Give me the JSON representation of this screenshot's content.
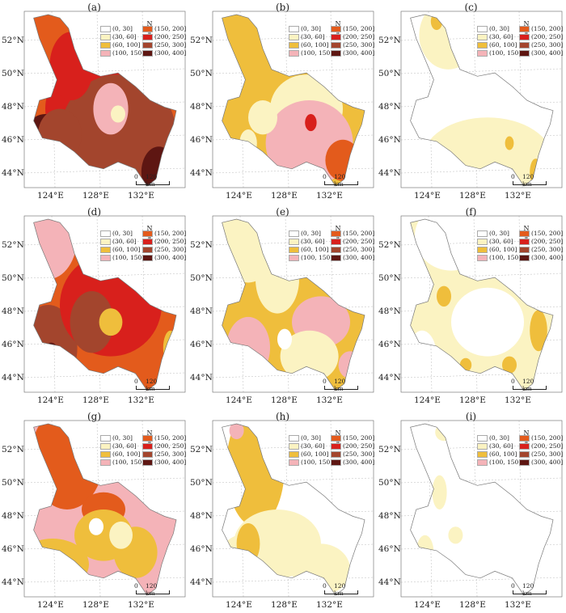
{
  "labels": {
    "lat": [
      "52°N",
      "50°N",
      "48°N",
      "46°N",
      "44°N"
    ],
    "lon": [
      "124°E",
      "128°E",
      "132°E"
    ],
    "north": "N",
    "scale_zero": "0",
    "scale_km": "120 km"
  },
  "legend": [
    {
      "label": "(0, 30]",
      "color": "#ffffff"
    },
    {
      "label": "(30, 60]",
      "color": "#fbf3c2"
    },
    {
      "label": "(60, 100]",
      "color": "#efbe3c"
    },
    {
      "label": "(100, 150]",
      "color": "#f4b3b8"
    },
    {
      "label": "(150, 200]",
      "color": "#e35b1c"
    },
    {
      "label": "(200, 250]",
      "color": "#d8201c"
    },
    {
      "label": "(250, 300]",
      "color": "#a3452d"
    },
    {
      "label": "(300, 400]",
      "color": "#5e1612"
    }
  ],
  "panels": [
    {
      "id": "(a)",
      "base": 4,
      "patches": [
        [
          5,
          0.45,
          0.55,
          0.35,
          0.3
        ],
        [
          6,
          0.6,
          0.7,
          0.4,
          0.35
        ],
        [
          7,
          0.1,
          0.8,
          0.18,
          0.22
        ],
        [
          3,
          0.55,
          0.55,
          0.12,
          0.15
        ],
        [
          1,
          0.6,
          0.58,
          0.05,
          0.05
        ],
        [
          7,
          0.88,
          0.92,
          0.12,
          0.15
        ],
        [
          5,
          0.28,
          0.3,
          0.15,
          0.2
        ],
        [
          6,
          0.2,
          0.7,
          0.15,
          0.15
        ],
        [
          1,
          0.4,
          0.2,
          0.04,
          0.05
        ]
      ]
    },
    {
      "id": "(b)",
      "base": 2,
      "patches": [
        [
          1,
          0.6,
          0.55,
          0.25,
          0.2
        ],
        [
          3,
          0.62,
          0.75,
          0.3,
          0.25
        ],
        [
          4,
          0.85,
          0.85,
          0.12,
          0.12
        ],
        [
          0,
          0.35,
          0.1,
          0.04,
          0.05
        ],
        [
          1,
          0.3,
          0.6,
          0.1,
          0.1
        ],
        [
          5,
          0.63,
          0.63,
          0.04,
          0.05
        ],
        [
          1,
          0.2,
          0.75,
          0.06,
          0.08
        ]
      ]
    },
    {
      "id": "(c)",
      "base": 0,
      "patches": [
        [
          1,
          0.55,
          0.85,
          0.45,
          0.25
        ],
        [
          1,
          0.28,
          0.12,
          0.2,
          0.2
        ],
        [
          2,
          0.2,
          0.04,
          0.04,
          0.05
        ],
        [
          2,
          0.88,
          0.92,
          0.04,
          0.08
        ],
        [
          2,
          0.7,
          0.75,
          0.03,
          0.04
        ]
      ]
    },
    {
      "id": "(d)",
      "base": 4,
      "patches": [
        [
          3,
          0.12,
          0.1,
          0.2,
          0.25
        ],
        [
          6,
          0.12,
          0.75,
          0.2,
          0.25
        ],
        [
          5,
          0.55,
          0.5,
          0.35,
          0.3
        ],
        [
          6,
          0.42,
          0.6,
          0.15,
          0.18
        ],
        [
          2,
          0.55,
          0.6,
          0.08,
          0.08
        ],
        [
          2,
          0.96,
          0.75,
          0.05,
          0.1
        ],
        [
          7,
          0.14,
          0.78,
          0.05,
          0.06
        ],
        [
          3,
          0.28,
          0.88,
          0.06,
          0.08
        ]
      ]
    },
    {
      "id": "(e)",
      "base": 2,
      "patches": [
        [
          1,
          0.2,
          0.12,
          0.2,
          0.25
        ],
        [
          1,
          0.4,
          0.35,
          0.15,
          0.2
        ],
        [
          3,
          0.2,
          0.75,
          0.15,
          0.18
        ],
        [
          3,
          0.7,
          0.6,
          0.2,
          0.15
        ],
        [
          1,
          0.62,
          0.8,
          0.2,
          0.15
        ],
        [
          0,
          0.45,
          0.7,
          0.05,
          0.06
        ],
        [
          3,
          0.9,
          0.85,
          0.08,
          0.08
        ]
      ]
    },
    {
      "id": "(f)",
      "base": 1,
      "patches": [
        [
          0,
          0.3,
          0.1,
          0.25,
          0.2
        ],
        [
          0,
          0.55,
          0.6,
          0.25,
          0.2
        ],
        [
          0,
          0.1,
          0.8,
          0.1,
          0.15
        ],
        [
          2,
          0.9,
          0.65,
          0.06,
          0.12
        ],
        [
          2,
          0.25,
          0.45,
          0.05,
          0.06
        ],
        [
          2,
          0.7,
          0.85,
          0.05,
          0.05
        ],
        [
          2,
          0.4,
          0.85,
          0.04,
          0.04
        ]
      ]
    },
    {
      "id": "(g)",
      "base": 3,
      "patches": [
        [
          4,
          0.25,
          0.2,
          0.25,
          0.3
        ],
        [
          4,
          0.5,
          0.5,
          0.15,
          0.1
        ],
        [
          2,
          0.5,
          0.65,
          0.2,
          0.15
        ],
        [
          2,
          0.15,
          0.82,
          0.25,
          0.15
        ],
        [
          2,
          0.72,
          0.75,
          0.15,
          0.15
        ],
        [
          0,
          0.45,
          0.6,
          0.05,
          0.05
        ],
        [
          1,
          0.62,
          0.65,
          0.08,
          0.08
        ],
        [
          5,
          0.3,
          0.88,
          0.03,
          0.04
        ]
      ]
    },
    {
      "id": "(h)",
      "base": 0,
      "patches": [
        [
          2,
          0.25,
          0.25,
          0.2,
          0.35
        ],
        [
          1,
          0.4,
          0.7,
          0.3,
          0.2
        ],
        [
          1,
          0.15,
          0.8,
          0.15,
          0.15
        ],
        [
          1,
          0.7,
          0.85,
          0.2,
          0.15
        ],
        [
          3,
          0.12,
          0.04,
          0.05,
          0.05
        ],
        [
          2,
          0.2,
          0.7,
          0.08,
          0.12
        ]
      ]
    },
    {
      "id": "(i)",
      "base": 0,
      "patches": [
        [
          1,
          0.25,
          0.05,
          0.06,
          0.05
        ],
        [
          1,
          0.22,
          0.4,
          0.05,
          0.1
        ],
        [
          1,
          0.12,
          0.75,
          0.06,
          0.1
        ],
        [
          1,
          0.33,
          0.65,
          0.05,
          0.05
        ],
        [
          2,
          0.13,
          0.78,
          0.03,
          0.05
        ]
      ]
    }
  ]
}
